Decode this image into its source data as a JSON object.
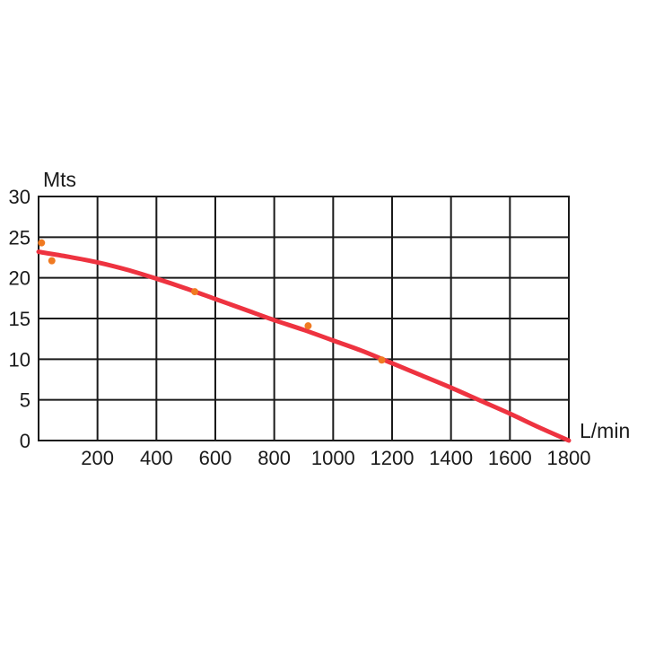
{
  "chart_data": {
    "type": "line",
    "title": "",
    "xlabel": "L/min",
    "ylabel": "Mts",
    "xlim": [
      0,
      1800
    ],
    "ylim": [
      0,
      30
    ],
    "grid": true,
    "legend": "none",
    "x_ticks": [
      200,
      400,
      600,
      800,
      1000,
      1200,
      1400,
      1600,
      1800
    ],
    "y_ticks": [
      0,
      5,
      10,
      15,
      20,
      25,
      30
    ],
    "series": [
      {
        "kind": "curve",
        "color": "#ee3340",
        "x": [
          0,
          100,
          200,
          300,
          400,
          500,
          600,
          700,
          800,
          900,
          1000,
          1100,
          1200,
          1300,
          1400,
          1500,
          1600,
          1700,
          1800
        ],
        "y": [
          23.2,
          22.6,
          21.9,
          21.0,
          19.9,
          18.7,
          17.4,
          16.1,
          14.8,
          13.6,
          12.3,
          11.0,
          9.5,
          8.0,
          6.5,
          4.9,
          3.3,
          1.6,
          0
        ]
      },
      {
        "kind": "points",
        "color": "#f07a22",
        "x": [
          10,
          45,
          530,
          915,
          1165
        ],
        "y": [
          24.3,
          22.1,
          18.3,
          14.1,
          9.9
        ]
      }
    ]
  }
}
